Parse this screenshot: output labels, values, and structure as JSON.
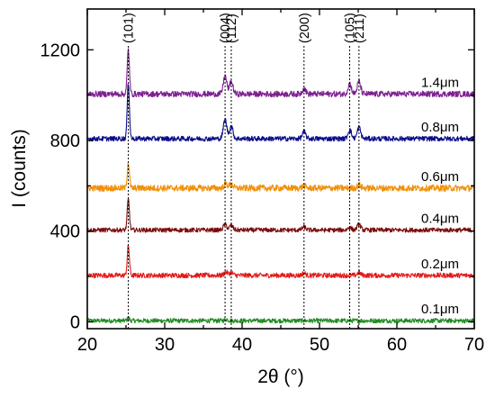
{
  "chart_data": {
    "type": "line",
    "xlabel": "2θ (°)",
    "ylabel": "I (counts)",
    "xlim": [
      20,
      70
    ],
    "ylim": [
      -30,
      1380
    ],
    "xticks": [
      20,
      30,
      40,
      50,
      60,
      70
    ],
    "yticks": [
      0,
      400,
      800,
      1200
    ],
    "minor_yticks": [
      200,
      600,
      1000
    ],
    "grid": false,
    "peaks": [
      {
        "label": "(101)",
        "x": 25.3
      },
      {
        "label": "(004)",
        "x": 37.8
      },
      {
        "label": "(112)",
        "x": 38.6
      },
      {
        "label": "(200)",
        "x": 48.0
      },
      {
        "label": "(105)",
        "x": 53.9
      },
      {
        "label": "(211)",
        "x": 55.1
      }
    ],
    "series": [
      {
        "name": "0.1μm",
        "baseline": 5,
        "color": "#228b22",
        "noise": 10,
        "peaks": [
          [
            25.3,
            12
          ],
          [
            38.0,
            6
          ]
        ]
      },
      {
        "name": "0.2μm",
        "baseline": 205,
        "color": "#e31a1a",
        "noise": 11,
        "peaks": [
          [
            25.3,
            130
          ],
          [
            37.9,
            15
          ],
          [
            38.6,
            12
          ],
          [
            48.0,
            10
          ],
          [
            55.1,
            12
          ]
        ]
      },
      {
        "name": "0.4μm",
        "baseline": 405,
        "color": "#7b0c0c",
        "noise": 10,
        "peaks": [
          [
            25.3,
            135
          ],
          [
            37.8,
            25
          ],
          [
            38.6,
            20
          ],
          [
            48.0,
            14
          ],
          [
            53.9,
            12
          ],
          [
            55.1,
            25
          ]
        ]
      },
      {
        "name": "0.6μm",
        "baseline": 590,
        "color": "#f0900a",
        "noise": 14,
        "peaks": [
          [
            25.3,
            115
          ],
          [
            37.9,
            20
          ],
          [
            38.6,
            18
          ],
          [
            48.0,
            10
          ],
          [
            55.1,
            15
          ]
        ]
      },
      {
        "name": "0.8μm",
        "baseline": 808,
        "color": "#0b0b8a",
        "noise": 11,
        "peaks": [
          [
            25.3,
            245
          ],
          [
            37.8,
            85
          ],
          [
            38.6,
            55
          ],
          [
            48.0,
            30
          ],
          [
            53.9,
            40
          ],
          [
            55.1,
            50
          ]
        ]
      },
      {
        "name": "1.4μm",
        "baseline": 1005,
        "color": "#7d2090",
        "noise": 13,
        "peaks": [
          [
            25.3,
            195
          ],
          [
            37.8,
            80
          ],
          [
            38.6,
            55
          ],
          [
            48.0,
            25
          ],
          [
            53.9,
            45
          ],
          [
            55.1,
            55
          ]
        ]
      }
    ]
  }
}
